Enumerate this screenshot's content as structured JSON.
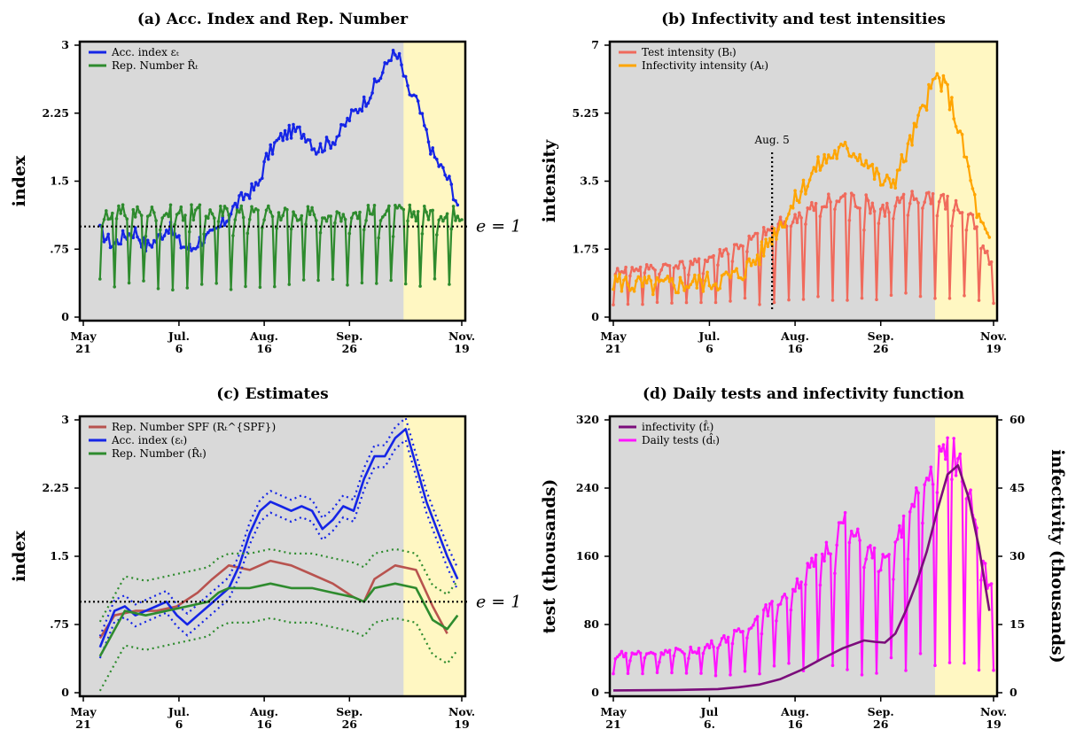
{
  "colors": {
    "bg_gray": "#d9d9d9",
    "highlight_yellow": "#fff7c2",
    "blue": "#1525e6",
    "green": "#2e8b2e",
    "red_light": "#f06a5c",
    "orange": "#ffa500",
    "brown": "#b8534f",
    "purple": "#7b0d7b",
    "magenta": "#ff14ff",
    "black": "#000000"
  },
  "chart_data": [
    {
      "id": "a",
      "type": "line",
      "title": "(a) Acc. Index and Rep. Number",
      "ylabel": "index",
      "ylim": [
        0,
        3
      ],
      "yticks": [
        0,
        0.75,
        1.5,
        2.25,
        3
      ],
      "yticklabels": [
        "0",
        ".75",
        "1.5",
        "2.25",
        "3"
      ],
      "xlim": [
        0,
        182
      ],
      "xticks": [
        0,
        46,
        87,
        128,
        182
      ],
      "xticklabels": [
        [
          "May",
          "21"
        ],
        [
          "Jul.",
          "6"
        ],
        [
          "Aug.",
          "16"
        ],
        [
          "Sep.",
          "26"
        ],
        [
          "Nov.",
          "19"
        ]
      ],
      "shade_x": [
        154,
        182
      ],
      "hline": {
        "y": 1,
        "label": "e = 1"
      },
      "legend": [
        "Acc. index ε_t",
        "Rep. Number R̂_t"
      ],
      "series": [
        {
          "name": "Acc. index ε_t",
          "color": "blue",
          "style": "noisy-dots",
          "x": [
            8,
            14,
            20,
            25,
            30,
            35,
            41,
            47,
            52,
            56,
            62,
            68,
            72,
            78,
            84,
            88,
            92,
            96,
            100,
            104,
            108,
            112,
            116,
            120,
            124,
            128,
            132,
            136,
            140,
            144,
            148,
            152,
            156,
            160,
            164,
            168,
            172,
            176,
            180
          ],
          "values": [
            0.95,
            0.8,
            0.9,
            0.95,
            0.78,
            0.85,
            1.0,
            0.8,
            0.75,
            0.85,
            0.9,
            1.05,
            1.2,
            1.35,
            1.45,
            1.75,
            1.9,
            2.0,
            2.05,
            2.05,
            2.0,
            1.85,
            1.9,
            1.95,
            2.05,
            2.2,
            2.3,
            2.4,
            2.55,
            2.7,
            2.9,
            2.85,
            2.5,
            2.4,
            2.1,
            1.8,
            1.65,
            1.5,
            1.25
          ],
          "amp": 0.08
        },
        {
          "name": "Rep. Number R̂_t",
          "color": "green",
          "style": "weekly-spikes",
          "x": [
            8,
            182
          ],
          "base": 1.15,
          "low": 0.3,
          "period": 7
        }
      ]
    },
    {
      "id": "b",
      "type": "line",
      "title": "(b) Infectivity and test intensities",
      "ylabel": "intensity",
      "ylim": [
        0,
        7
      ],
      "yticks": [
        0,
        1.75,
        3.5,
        5.25,
        7
      ],
      "yticklabels": [
        "0",
        "1.75",
        "3.5",
        "5.25",
        "7"
      ],
      "xlim": [
        0,
        182
      ],
      "xticks": [
        0,
        46,
        87,
        128,
        182
      ],
      "xticklabels": [
        [
          "May",
          "21"
        ],
        [
          "Jul.",
          "6"
        ],
        [
          "Aug.",
          "16"
        ],
        [
          "Sep.",
          "26"
        ],
        [
          "Nov.",
          "19"
        ]
      ],
      "shade_x": [
        154,
        182
      ],
      "vline": {
        "x": 76,
        "label": "Aug. 5"
      },
      "legend": [
        "Test intensity (B_t)",
        "Infectivity intensity (A_t)"
      ],
      "series": [
        {
          "name": "Test intensity (B_t)",
          "color": "red_light",
          "style": "weekly-spikes",
          "x": [
            0,
            182
          ],
          "base_points": [
            [
              0,
              1.2
            ],
            [
              40,
              1.4
            ],
            [
              70,
              2.1
            ],
            [
              90,
              2.7
            ],
            [
              110,
              3.1
            ],
            [
              130,
              2.8
            ],
            [
              150,
              3.2
            ],
            [
              170,
              2.7
            ],
            [
              182,
              1.2
            ]
          ],
          "low": 0.3,
          "period": 7
        },
        {
          "name": "Infectivity intensity (A_t)",
          "color": "orange",
          "style": "noisy-dots",
          "x": [
            0,
            10,
            20,
            30,
            40,
            50,
            60,
            70,
            76,
            85,
            95,
            100,
            105,
            110,
            115,
            120,
            125,
            130,
            135,
            140,
            145,
            150,
            155,
            160,
            165,
            170,
            175,
            180
          ],
          "values": [
            0.95,
            0.85,
            0.8,
            0.85,
            0.9,
            0.95,
            1.1,
            1.6,
            2.1,
            2.8,
            3.7,
            4.0,
            4.2,
            4.3,
            4.3,
            4.1,
            3.7,
            3.4,
            3.6,
            4.2,
            4.9,
            5.6,
            6.2,
            5.8,
            4.9,
            3.8,
            2.5,
            1.9
          ],
          "amp": 0.12
        }
      ]
    },
    {
      "id": "c",
      "type": "line",
      "title": "(c) Estimates",
      "ylabel": "index",
      "ylim": [
        0,
        3
      ],
      "yticks": [
        0,
        0.75,
        1.5,
        2.25,
        3
      ],
      "yticklabels": [
        "0",
        ".75",
        "1.5",
        "2.25",
        "3"
      ],
      "xlim": [
        0,
        182
      ],
      "xticks": [
        0,
        46,
        87,
        128,
        182
      ],
      "xticklabels": [
        [
          "May",
          "21"
        ],
        [
          "Jul.",
          "6"
        ],
        [
          "Aug.",
          "16"
        ],
        [
          "Sep.",
          "26"
        ],
        [
          "Nov.",
          "19"
        ]
      ],
      "shade_x": [
        154,
        182
      ],
      "hline": {
        "y": 1,
        "label": "e = 1"
      },
      "legend": [
        "Rep. Number SPF (R_t^{SPF})",
        "Acc. index (ε_t)",
        "Rep. Number (R̂_t)"
      ],
      "series": [
        {
          "name": "Rep. Number SPF (R_t^{SPF})",
          "color": "brown",
          "x": [
            8,
            15,
            25,
            35,
            45,
            55,
            62,
            70,
            80,
            90,
            100,
            110,
            120,
            130,
            135,
            140,
            150,
            160,
            168,
            175
          ],
          "values": [
            0.6,
            0.85,
            0.9,
            0.9,
            0.95,
            1.1,
            1.25,
            1.4,
            1.35,
            1.45,
            1.4,
            1.3,
            1.2,
            1.05,
            1.0,
            1.25,
            1.4,
            1.35,
            0.95,
            0.65
          ]
        },
        {
          "name": "Acc. index (ε_t)",
          "color": "blue",
          "x": [
            8,
            15,
            20,
            25,
            30,
            35,
            40,
            45,
            50,
            55,
            60,
            65,
            70,
            75,
            80,
            85,
            90,
            95,
            100,
            105,
            110,
            115,
            120,
            125,
            130,
            135,
            140,
            145,
            150,
            155,
            160,
            165,
            170,
            175,
            180
          ],
          "values": [
            0.5,
            0.9,
            0.95,
            0.85,
            0.9,
            0.95,
            1.0,
            0.85,
            0.75,
            0.85,
            0.95,
            1.05,
            1.15,
            1.4,
            1.75,
            2.0,
            2.1,
            2.05,
            2.0,
            2.05,
            2.0,
            1.8,
            1.9,
            2.05,
            2.0,
            2.35,
            2.6,
            2.6,
            2.8,
            2.9,
            2.5,
            2.1,
            1.8,
            1.5,
            1.25
          ]
        },
        {
          "name": "Rep. Number (R̂_t)",
          "color": "green",
          "x": [
            8,
            20,
            30,
            40,
            50,
            60,
            65,
            70,
            80,
            90,
            100,
            110,
            120,
            130,
            135,
            140,
            150,
            160,
            168,
            175,
            180
          ],
          "values": [
            0.4,
            0.9,
            0.85,
            0.9,
            0.95,
            1.0,
            1.1,
            1.15,
            1.15,
            1.2,
            1.15,
            1.15,
            1.1,
            1.05,
            1.0,
            1.15,
            1.2,
            1.15,
            0.8,
            0.7,
            0.85
          ]
        }
      ]
    },
    {
      "id": "d",
      "type": "line",
      "title": "(d) Daily tests and infectivity function",
      "ylabel": "test  (thousands)",
      "ylabel_right": "infectivity  (thousands)",
      "ylim": [
        0,
        320
      ],
      "yticks": [
        0,
        80,
        160,
        240,
        320
      ],
      "yticklabels": [
        "0",
        "80",
        "160",
        "240",
        "320"
      ],
      "ylim_right": [
        0,
        60
      ],
      "yticks_right": [
        0,
        15,
        30,
        45,
        60
      ],
      "yticklabels_right": [
        "0",
        "15",
        "30",
        "45",
        "60"
      ],
      "xlim": [
        0,
        182
      ],
      "xticks": [
        0,
        46,
        87,
        128,
        182
      ],
      "xticklabels": [
        [
          "May",
          "21"
        ],
        [
          "Jul",
          "6."
        ],
        [
          "Aug.",
          "16"
        ],
        [
          "Sep.",
          "26"
        ],
        [
          "Nov.",
          "19"
        ]
      ],
      "shade_x": [
        154,
        182
      ],
      "legend": [
        "infectivity (f̂_t)",
        "Daily tests (d̂_t)"
      ],
      "series": [
        {
          "name": "Daily tests (d̂_t)",
          "color": "magenta",
          "style": "weekly-spikes",
          "x": [
            0,
            182
          ],
          "base_points": [
            [
              0,
              45
            ],
            [
              40,
              50
            ],
            [
              60,
              70
            ],
            [
              80,
              110
            ],
            [
              100,
              160
            ],
            [
              110,
              200
            ],
            [
              120,
              170
            ],
            [
              130,
              150
            ],
            [
              140,
              200
            ],
            [
              150,
              250
            ],
            [
              160,
              290
            ],
            [
              170,
              250
            ],
            [
              180,
              120
            ]
          ],
          "low": 20,
          "period": 7
        },
        {
          "name": "infectivity (f̂_t)",
          "color": "purple",
          "axis": "right",
          "x": [
            0,
            30,
            50,
            60,
            70,
            80,
            90,
            100,
            110,
            120,
            125,
            130,
            135,
            140,
            145,
            150,
            155,
            160,
            165,
            170,
            175,
            180
          ],
          "values": [
            0.5,
            0.6,
            0.8,
            1.2,
            1.8,
            3.0,
            5.0,
            7.5,
            9.8,
            11.5,
            11.2,
            11.0,
            13.0,
            18.0,
            24.0,
            31.0,
            40.0,
            48.0,
            50.0,
            43.0,
            32.0,
            18.0
          ]
        }
      ]
    }
  ]
}
